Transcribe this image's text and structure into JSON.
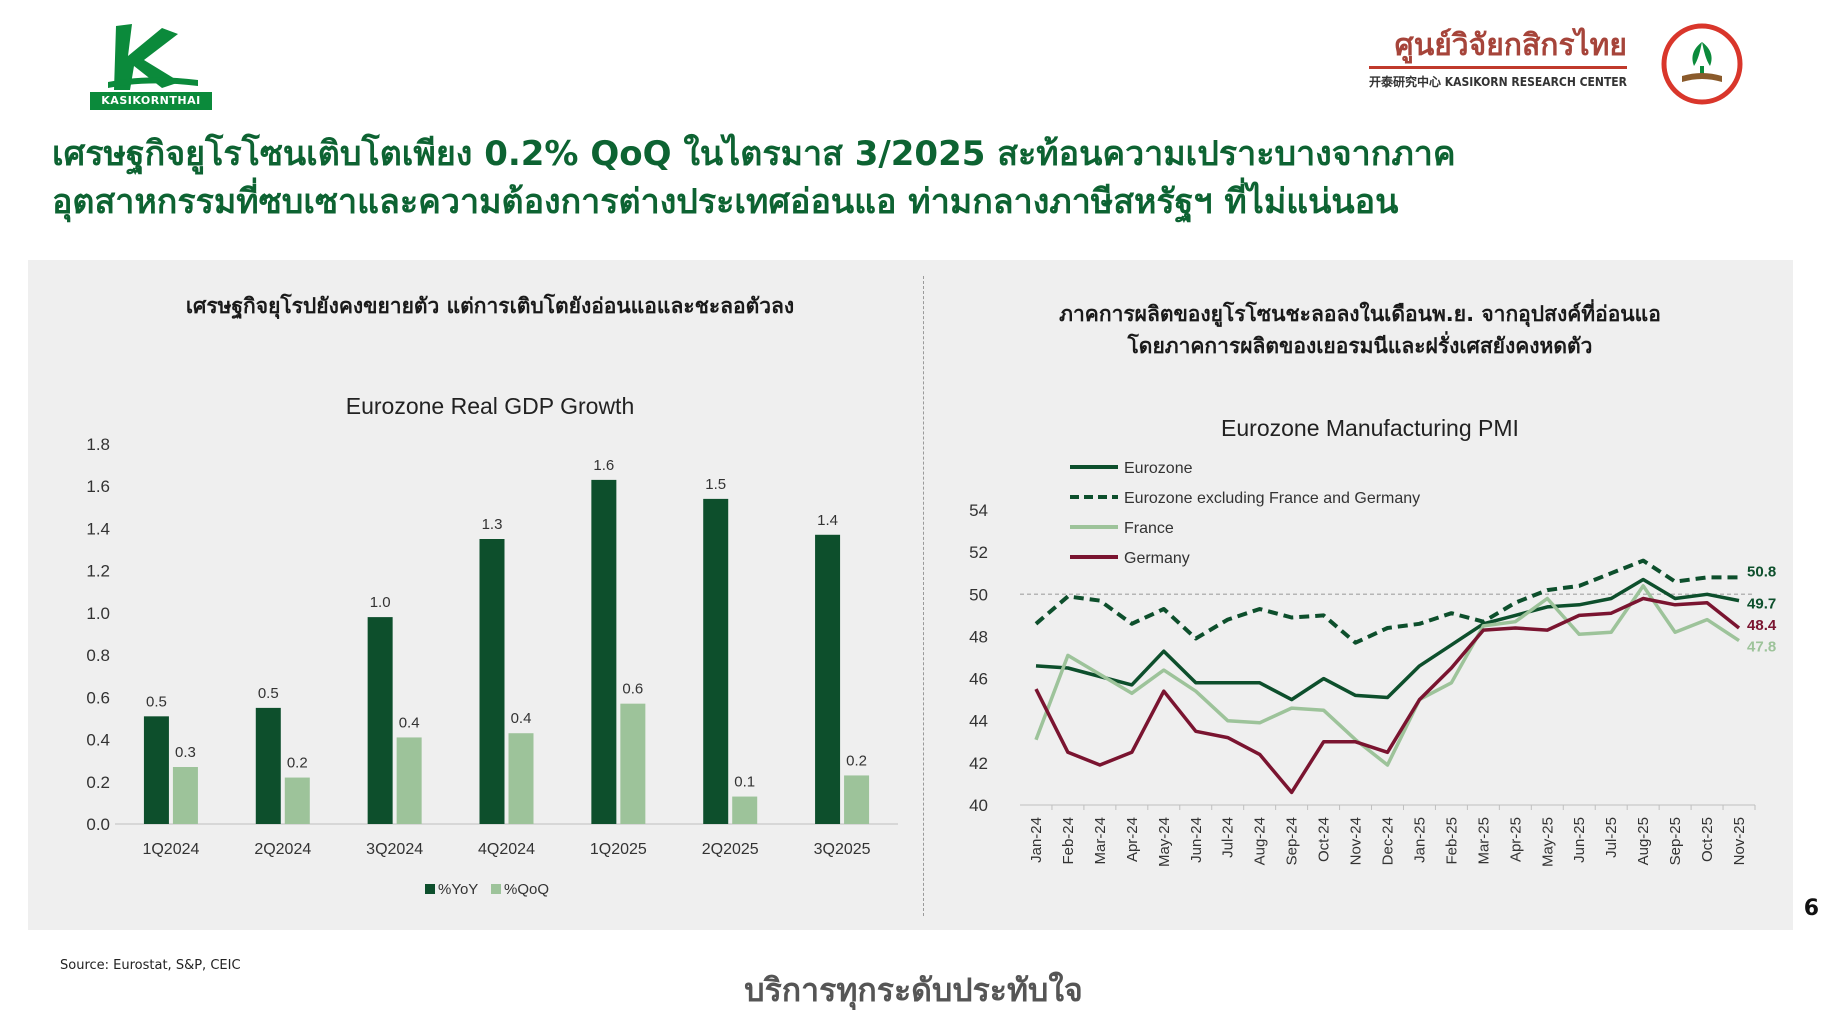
{
  "header": {
    "logo_text": "KASIKORNTHAI",
    "research_center_thai": "ศูนย์วิจัยกสิกรไทย",
    "research_center_en": "开泰研究中心 KASIKORN RESEARCH CENTER",
    "title_line1": "เศรษฐกิจยูโรโซนเติบโตเพียง 0.2% QoQ ในไตรมาส 3/2025 สะท้อนความเปราะบางจากภาค",
    "title_line2": "อุตสาหกรรมที่ซบเซาและความต้องการต่างประเทศอ่อนแอ ท่ามกลางภาษีสหรัฐฯ ที่ไม่แน่นอน"
  },
  "left_panel": {
    "heading": "เศรษฐกิจยุโรปยังคงขยายตัว แต่การเติบโตยังอ่อนแอและชะลอตัวลง"
  },
  "right_panel": {
    "heading_line1": "ภาคการผลิตของยูโรโซนชะลอลงในเดือนพ.ย. จากอุปสงค์ที่อ่อนแอ",
    "heading_line2": "โดยภาคการผลิตของเยอรมนีและฝรั่งเศสยังคงหดตัว"
  },
  "chart_data": [
    {
      "type": "bar",
      "title": "Eurozone Real GDP Growth",
      "categories": [
        "1Q2024",
        "2Q2024",
        "3Q2024",
        "4Q2024",
        "1Q2025",
        "2Q2025",
        "3Q2025"
      ],
      "ylim": [
        0,
        1.8
      ],
      "yticks": [
        "0.0",
        "0.2",
        "0.4",
        "0.6",
        "0.8",
        "1.0",
        "1.2",
        "1.4",
        "1.6",
        "1.8"
      ],
      "series": [
        {
          "name": "%YoY",
          "color": "#0d4f2c",
          "values": [
            0.51,
            0.55,
            0.98,
            1.35,
            1.63,
            1.54,
            1.37
          ],
          "labels": [
            "0.5",
            "0.5",
            "1.0",
            "1.3",
            "1.6",
            "1.5",
            "1.4"
          ]
        },
        {
          "name": "%QoQ",
          "color": "#9dc39a",
          "values": [
            0.27,
            0.22,
            0.41,
            0.43,
            0.57,
            0.13,
            0.23
          ],
          "labels": [
            "0.3",
            "0.2",
            "0.4",
            "0.4",
            "0.6",
            "0.1",
            "0.2"
          ]
        }
      ],
      "legend": "bottom",
      "grid": false
    },
    {
      "type": "line",
      "title": "Eurozone Manufacturing PMI",
      "x": [
        "Jan-24",
        "Feb-24",
        "Mar-24",
        "Apr-24",
        "May-24",
        "Jun-24",
        "Jul-24",
        "Aug-24",
        "Sep-24",
        "Oct-24",
        "Nov-24",
        "Dec-24",
        "Jan-25",
        "Feb-25",
        "Mar-25",
        "Apr-25",
        "May-25",
        "Jun-25",
        "Jul-25",
        "Aug-25",
        "Sep-25",
        "Oct-25",
        "Nov-25"
      ],
      "ylim": [
        40,
        54
      ],
      "yticks": [
        "40",
        "42",
        "44",
        "46",
        "48",
        "50",
        "52",
        "54"
      ],
      "reference_line": 50,
      "series": [
        {
          "name": "Eurozone",
          "color": "#0d4f2c",
          "style": "solid",
          "values": [
            46.6,
            46.5,
            46.1,
            45.7,
            47.3,
            45.8,
            45.8,
            45.8,
            45.0,
            46.0,
            45.2,
            45.1,
            46.6,
            47.6,
            48.6,
            49.0,
            49.4,
            49.5,
            49.8,
            50.7,
            49.8,
            50.0,
            49.7
          ],
          "end_label": "49.7"
        },
        {
          "name": "Eurozone excluding France and Germany",
          "color": "#0d4f2c",
          "style": "dashed",
          "values": [
            48.6,
            49.9,
            49.7,
            48.6,
            49.3,
            47.9,
            48.8,
            49.3,
            48.9,
            49.0,
            47.7,
            48.4,
            48.6,
            49.1,
            48.7,
            49.6,
            50.2,
            50.4,
            51.0,
            51.6,
            50.6,
            50.8,
            50.8
          ],
          "end_label": "50.8"
        },
        {
          "name": "France",
          "color": "#9dc39a",
          "style": "solid",
          "values": [
            43.1,
            47.1,
            46.2,
            45.3,
            46.4,
            45.4,
            44.0,
            43.9,
            44.6,
            44.5,
            43.1,
            41.9,
            45.0,
            45.8,
            48.5,
            48.7,
            49.8,
            48.1,
            48.2,
            50.4,
            48.2,
            48.8,
            47.8
          ],
          "end_label": "47.8"
        },
        {
          "name": "Germany",
          "color": "#7a1430",
          "style": "solid",
          "values": [
            45.5,
            42.5,
            41.9,
            42.5,
            45.4,
            43.5,
            43.2,
            42.4,
            40.6,
            43.0,
            43.0,
            42.5,
            45.0,
            46.5,
            48.3,
            48.4,
            48.3,
            49.0,
            49.1,
            49.8,
            49.5,
            49.6,
            48.4
          ],
          "end_label": "48.4"
        }
      ],
      "legend": "top-left",
      "grid": false
    }
  ],
  "footer": {
    "page_number": "6",
    "source": "Source: Eurostat, S&P, CEIC",
    "tagline": "บริการทุกระดับประทับใจ"
  }
}
